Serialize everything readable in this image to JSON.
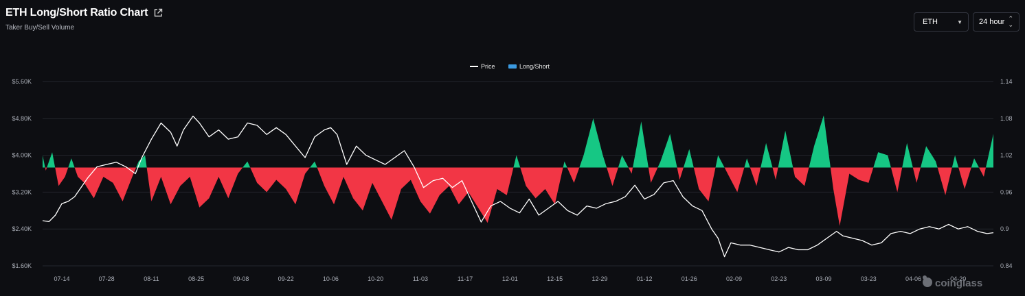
{
  "header": {
    "title": "ETH Long/Short Ratio Chart",
    "subtitle": "Taker Buy/Sell Volume"
  },
  "controls": {
    "coin": "ETH",
    "period": "24 hour"
  },
  "watermark": "coinglass",
  "icons": {
    "external": "external-link-icon",
    "dropdown": "chevron-down-icon",
    "updown": "updown-chevron-icon",
    "logo": "coinglass-logo-icon"
  },
  "colors": {
    "price": "#ffffff",
    "long": "#16c784",
    "short": "#f23645",
    "legend_ls": "#3b9ae1"
  },
  "chart_data": {
    "type": "area",
    "title": "",
    "legend": [
      {
        "name": "Price",
        "kind": "line"
      },
      {
        "name": "Long/Short",
        "kind": "area"
      }
    ],
    "legend_position": "top-center",
    "grid": true,
    "y_left": {
      "min": 1600,
      "max": 5600,
      "ticks": [
        "$1.60K",
        "$2.40K",
        "$3.20K",
        "$4.00K",
        "$4.80K",
        "$5.60K"
      ]
    },
    "y_right": {
      "min": 0.84,
      "max": 1.14,
      "baseline": 1.0,
      "ticks": [
        "0.84",
        "0.9",
        "0.96",
        "1.02",
        "1.08",
        "1.14"
      ]
    },
    "x_ticks": [
      "07-14",
      "07-28",
      "08-11",
      "08-25",
      "09-08",
      "09-22",
      "10-06",
      "10-20",
      "11-03",
      "11-17",
      "12-01",
      "12-15",
      "12-29",
      "01-12",
      "01-26",
      "02-09",
      "02-23",
      "03-09",
      "03-23",
      "04-06",
      "04-20"
    ],
    "x_domain": {
      "start": "2024-07-08",
      "end": "2025-05-01"
    },
    "series": [
      {
        "name": "Price",
        "points": [
          [
            "2024-07-08",
            2580
          ],
          [
            "2024-07-10",
            2560
          ],
          [
            "2024-07-12",
            2700
          ],
          [
            "2024-07-14",
            2950
          ],
          [
            "2024-07-16",
            3000
          ],
          [
            "2024-07-18",
            3100
          ],
          [
            "2024-07-20",
            3300
          ],
          [
            "2024-07-22",
            3500
          ],
          [
            "2024-07-25",
            3750
          ],
          [
            "2024-07-28",
            3800
          ],
          [
            "2024-07-31",
            3850
          ],
          [
            "2024-08-03",
            3750
          ],
          [
            "2024-08-06",
            3600
          ],
          [
            "2024-08-08",
            3950
          ],
          [
            "2024-08-11",
            4350
          ],
          [
            "2024-08-14",
            4700
          ],
          [
            "2024-08-17",
            4500
          ],
          [
            "2024-08-19",
            4200
          ],
          [
            "2024-08-21",
            4550
          ],
          [
            "2024-08-24",
            4850
          ],
          [
            "2024-08-26",
            4700
          ],
          [
            "2024-08-29",
            4400
          ],
          [
            "2024-09-01",
            4550
          ],
          [
            "2024-09-04",
            4350
          ],
          [
            "2024-09-07",
            4400
          ],
          [
            "2024-09-10",
            4700
          ],
          [
            "2024-09-13",
            4650
          ],
          [
            "2024-09-16",
            4450
          ],
          [
            "2024-09-19",
            4600
          ],
          [
            "2024-09-22",
            4450
          ],
          [
            "2024-09-25",
            4200
          ],
          [
            "2024-09-28",
            3950
          ],
          [
            "2024-10-01",
            4400
          ],
          [
            "2024-10-04",
            4550
          ],
          [
            "2024-10-06",
            4600
          ],
          [
            "2024-10-08",
            4450
          ],
          [
            "2024-10-11",
            3800
          ],
          [
            "2024-10-14",
            4200
          ],
          [
            "2024-10-17",
            4000
          ],
          [
            "2024-10-20",
            3900
          ],
          [
            "2024-10-23",
            3800
          ],
          [
            "2024-10-26",
            3950
          ],
          [
            "2024-10-29",
            4100
          ],
          [
            "2024-11-01",
            3750
          ],
          [
            "2024-11-04",
            3300
          ],
          [
            "2024-11-07",
            3450
          ],
          [
            "2024-11-10",
            3500
          ],
          [
            "2024-11-13",
            3300
          ],
          [
            "2024-11-16",
            3450
          ],
          [
            "2024-11-19",
            3000
          ],
          [
            "2024-11-22",
            2550
          ],
          [
            "2024-11-25",
            2900
          ],
          [
            "2024-11-28",
            3000
          ],
          [
            "2024-12-01",
            2850
          ],
          [
            "2024-12-04",
            2750
          ],
          [
            "2024-12-07",
            3050
          ],
          [
            "2024-12-10",
            2700
          ],
          [
            "2024-12-13",
            2850
          ],
          [
            "2024-12-16",
            3000
          ],
          [
            "2024-12-19",
            2800
          ],
          [
            "2024-12-22",
            2700
          ],
          [
            "2024-12-25",
            2900
          ],
          [
            "2024-12-28",
            2850
          ],
          [
            "2024-12-31",
            2950
          ],
          [
            "2025-01-03",
            3000
          ],
          [
            "2025-01-06",
            3100
          ],
          [
            "2025-01-09",
            3350
          ],
          [
            "2025-01-12",
            3050
          ],
          [
            "2025-01-15",
            3150
          ],
          [
            "2025-01-18",
            3400
          ],
          [
            "2025-01-21",
            3450
          ],
          [
            "2025-01-24",
            3100
          ],
          [
            "2025-01-27",
            2900
          ],
          [
            "2025-01-30",
            2800
          ],
          [
            "2025-02-02",
            2400
          ],
          [
            "2025-02-04",
            2200
          ],
          [
            "2025-02-06",
            1800
          ],
          [
            "2025-02-08",
            2100
          ],
          [
            "2025-02-11",
            2050
          ],
          [
            "2025-02-14",
            2050
          ],
          [
            "2025-02-17",
            2000
          ],
          [
            "2025-02-20",
            1950
          ],
          [
            "2025-02-23",
            1900
          ],
          [
            "2025-02-26",
            2000
          ],
          [
            "2025-03-01",
            1950
          ],
          [
            "2025-03-04",
            1950
          ],
          [
            "2025-03-07",
            2050
          ],
          [
            "2025-03-10",
            2200
          ],
          [
            "2025-03-13",
            2350
          ],
          [
            "2025-03-15",
            2250
          ],
          [
            "2025-03-18",
            2200
          ],
          [
            "2025-03-21",
            2150
          ],
          [
            "2025-03-24",
            2050
          ],
          [
            "2025-03-27",
            2100
          ],
          [
            "2025-03-30",
            2300
          ],
          [
            "2025-04-02",
            2350
          ],
          [
            "2025-04-05",
            2300
          ],
          [
            "2025-04-08",
            2400
          ],
          [
            "2025-04-11",
            2450
          ],
          [
            "2025-04-14",
            2400
          ],
          [
            "2025-04-17",
            2500
          ],
          [
            "2025-04-20",
            2400
          ],
          [
            "2025-04-23",
            2450
          ],
          [
            "2025-04-26",
            2350
          ],
          [
            "2025-04-29",
            2300
          ],
          [
            "2025-05-01",
            2320
          ]
        ]
      },
      {
        "name": "Long/Short",
        "points": [
          [
            "2024-07-08",
            1.02
          ],
          [
            "2024-07-09",
            0.995
          ],
          [
            "2024-07-11",
            1.025
          ],
          [
            "2024-07-13",
            0.97
          ],
          [
            "2024-07-15",
            0.985
          ],
          [
            "2024-07-17",
            1.015
          ],
          [
            "2024-07-19",
            0.985
          ],
          [
            "2024-07-21",
            0.975
          ],
          [
            "2024-07-24",
            0.95
          ],
          [
            "2024-07-27",
            0.985
          ],
          [
            "2024-07-30",
            0.975
          ],
          [
            "2024-08-02",
            0.945
          ],
          [
            "2024-08-05",
            0.985
          ],
          [
            "2024-08-07",
            1.01
          ],
          [
            "2024-08-09",
            1.02
          ],
          [
            "2024-08-11",
            0.945
          ],
          [
            "2024-08-14",
            0.985
          ],
          [
            "2024-08-17",
            0.94
          ],
          [
            "2024-08-20",
            0.97
          ],
          [
            "2024-08-23",
            0.985
          ],
          [
            "2024-08-26",
            0.935
          ],
          [
            "2024-08-29",
            0.95
          ],
          [
            "2024-09-01",
            0.985
          ],
          [
            "2024-09-04",
            0.95
          ],
          [
            "2024-09-07",
            0.99
          ],
          [
            "2024-09-10",
            1.01
          ],
          [
            "2024-09-13",
            0.975
          ],
          [
            "2024-09-16",
            0.96
          ],
          [
            "2024-09-19",
            0.98
          ],
          [
            "2024-09-22",
            0.965
          ],
          [
            "2024-09-25",
            0.94
          ],
          [
            "2024-09-28",
            0.99
          ],
          [
            "2024-10-01",
            1.01
          ],
          [
            "2024-10-04",
            0.97
          ],
          [
            "2024-10-07",
            0.94
          ],
          [
            "2024-10-10",
            0.985
          ],
          [
            "2024-10-13",
            0.95
          ],
          [
            "2024-10-16",
            0.93
          ],
          [
            "2024-10-19",
            0.975
          ],
          [
            "2024-10-22",
            0.945
          ],
          [
            "2024-10-25",
            0.915
          ],
          [
            "2024-10-28",
            0.965
          ],
          [
            "2024-10-31",
            0.98
          ],
          [
            "2024-11-03",
            0.945
          ],
          [
            "2024-11-06",
            0.925
          ],
          [
            "2024-11-09",
            0.955
          ],
          [
            "2024-11-12",
            0.97
          ],
          [
            "2024-11-15",
            0.94
          ],
          [
            "2024-11-18",
            0.96
          ],
          [
            "2024-11-21",
            0.935
          ],
          [
            "2024-11-24",
            0.91
          ],
          [
            "2024-11-27",
            0.965
          ],
          [
            "2024-11-30",
            0.955
          ],
          [
            "2024-12-03",
            1.02
          ],
          [
            "2024-12-06",
            0.97
          ],
          [
            "2024-12-09",
            0.95
          ],
          [
            "2024-12-12",
            0.965
          ],
          [
            "2024-12-15",
            0.94
          ],
          [
            "2024-12-18",
            1.01
          ],
          [
            "2024-12-21",
            0.975
          ],
          [
            "2024-12-24",
            1.02
          ],
          [
            "2024-12-27",
            1.08
          ],
          [
            "2024-12-30",
            1.02
          ],
          [
            "2025-01-02",
            0.97
          ],
          [
            "2025-01-05",
            1.02
          ],
          [
            "2025-01-08",
            0.99
          ],
          [
            "2025-01-11",
            1.075
          ],
          [
            "2025-01-14",
            0.975
          ],
          [
            "2025-01-17",
            1.01
          ],
          [
            "2025-01-20",
            1.055
          ],
          [
            "2025-01-23",
            0.98
          ],
          [
            "2025-01-26",
            1.03
          ],
          [
            "2025-01-29",
            0.965
          ],
          [
            "2025-02-01",
            0.945
          ],
          [
            "2025-02-04",
            1.02
          ],
          [
            "2025-02-07",
            0.99
          ],
          [
            "2025-02-10",
            0.96
          ],
          [
            "2025-02-13",
            1.015
          ],
          [
            "2025-02-16",
            0.97
          ],
          [
            "2025-02-19",
            1.04
          ],
          [
            "2025-02-22",
            0.98
          ],
          [
            "2025-02-25",
            1.06
          ],
          [
            "2025-02-28",
            0.985
          ],
          [
            "2025-03-03",
            0.97
          ],
          [
            "2025-03-06",
            1.035
          ],
          [
            "2025-03-09",
            1.085
          ],
          [
            "2025-03-12",
            0.965
          ],
          [
            "2025-03-14",
            0.905
          ],
          [
            "2025-03-17",
            0.99
          ],
          [
            "2025-03-20",
            0.98
          ],
          [
            "2025-03-23",
            0.975
          ],
          [
            "2025-03-26",
            1.025
          ],
          [
            "2025-03-29",
            1.02
          ],
          [
            "2025-04-01",
            0.96
          ],
          [
            "2025-04-04",
            1.04
          ],
          [
            "2025-04-07",
            0.975
          ],
          [
            "2025-04-10",
            1.035
          ],
          [
            "2025-04-13",
            1.01
          ],
          [
            "2025-04-16",
            0.955
          ],
          [
            "2025-04-19",
            1.02
          ],
          [
            "2025-04-22",
            0.965
          ],
          [
            "2025-04-25",
            1.015
          ],
          [
            "2025-04-28",
            0.985
          ],
          [
            "2025-05-01",
            1.055
          ]
        ]
      }
    ]
  }
}
